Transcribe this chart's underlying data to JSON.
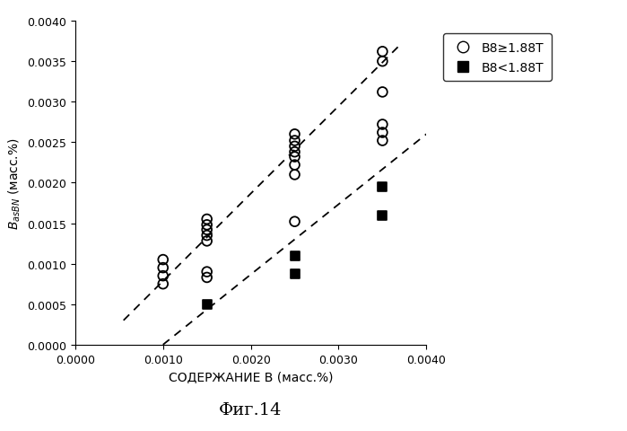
{
  "title": "Фиг.14",
  "xlabel": "СОДЕРЖАНИЕ B (масс.%)",
  "ylabel": "BₐₛBN (масс.%)",
  "xlim": [
    0.0,
    0.004
  ],
  "ylim": [
    0.0,
    0.004
  ],
  "xticks": [
    0.0,
    0.001,
    0.002,
    0.003,
    0.004
  ],
  "yticks": [
    0.0,
    0.0005,
    0.001,
    0.0015,
    0.002,
    0.0025,
    0.003,
    0.0035,
    0.004
  ],
  "circle_points": [
    [
      0.001,
      0.00105
    ],
    [
      0.001,
      0.00095
    ],
    [
      0.001,
      0.00085
    ],
    [
      0.001,
      0.00075
    ],
    [
      0.0015,
      0.00155
    ],
    [
      0.0015,
      0.00148
    ],
    [
      0.0015,
      0.00142
    ],
    [
      0.0015,
      0.00135
    ],
    [
      0.0015,
      0.00128
    ],
    [
      0.0015,
      0.0009
    ],
    [
      0.0015,
      0.00083
    ],
    [
      0.0025,
      0.0026
    ],
    [
      0.0025,
      0.00252
    ],
    [
      0.0025,
      0.00245
    ],
    [
      0.0025,
      0.00238
    ],
    [
      0.0025,
      0.00232
    ],
    [
      0.0025,
      0.00222
    ],
    [
      0.0025,
      0.0021
    ],
    [
      0.0025,
      0.00152
    ],
    [
      0.0035,
      0.00362
    ],
    [
      0.0035,
      0.0035
    ],
    [
      0.0035,
      0.00312
    ],
    [
      0.0035,
      0.00272
    ],
    [
      0.0035,
      0.00262
    ],
    [
      0.0035,
      0.00252
    ]
  ],
  "square_points": [
    [
      0.0015,
      0.0005
    ],
    [
      0.0025,
      0.0011
    ],
    [
      0.0025,
      0.00087
    ],
    [
      0.0035,
      0.00195
    ],
    [
      0.0035,
      0.0016
    ]
  ],
  "upper_line_x": [
    0.00055,
    0.00368
  ],
  "upper_line_y": [
    0.0003,
    0.00368
  ],
  "lower_line_x": [
    0.001,
    0.004
  ],
  "lower_line_y": [
    0.0,
    0.0026
  ],
  "legend_circle_label": "B8≥1.88T",
  "legend_square_label": "B8<1.88T",
  "background_color": "#ffffff"
}
